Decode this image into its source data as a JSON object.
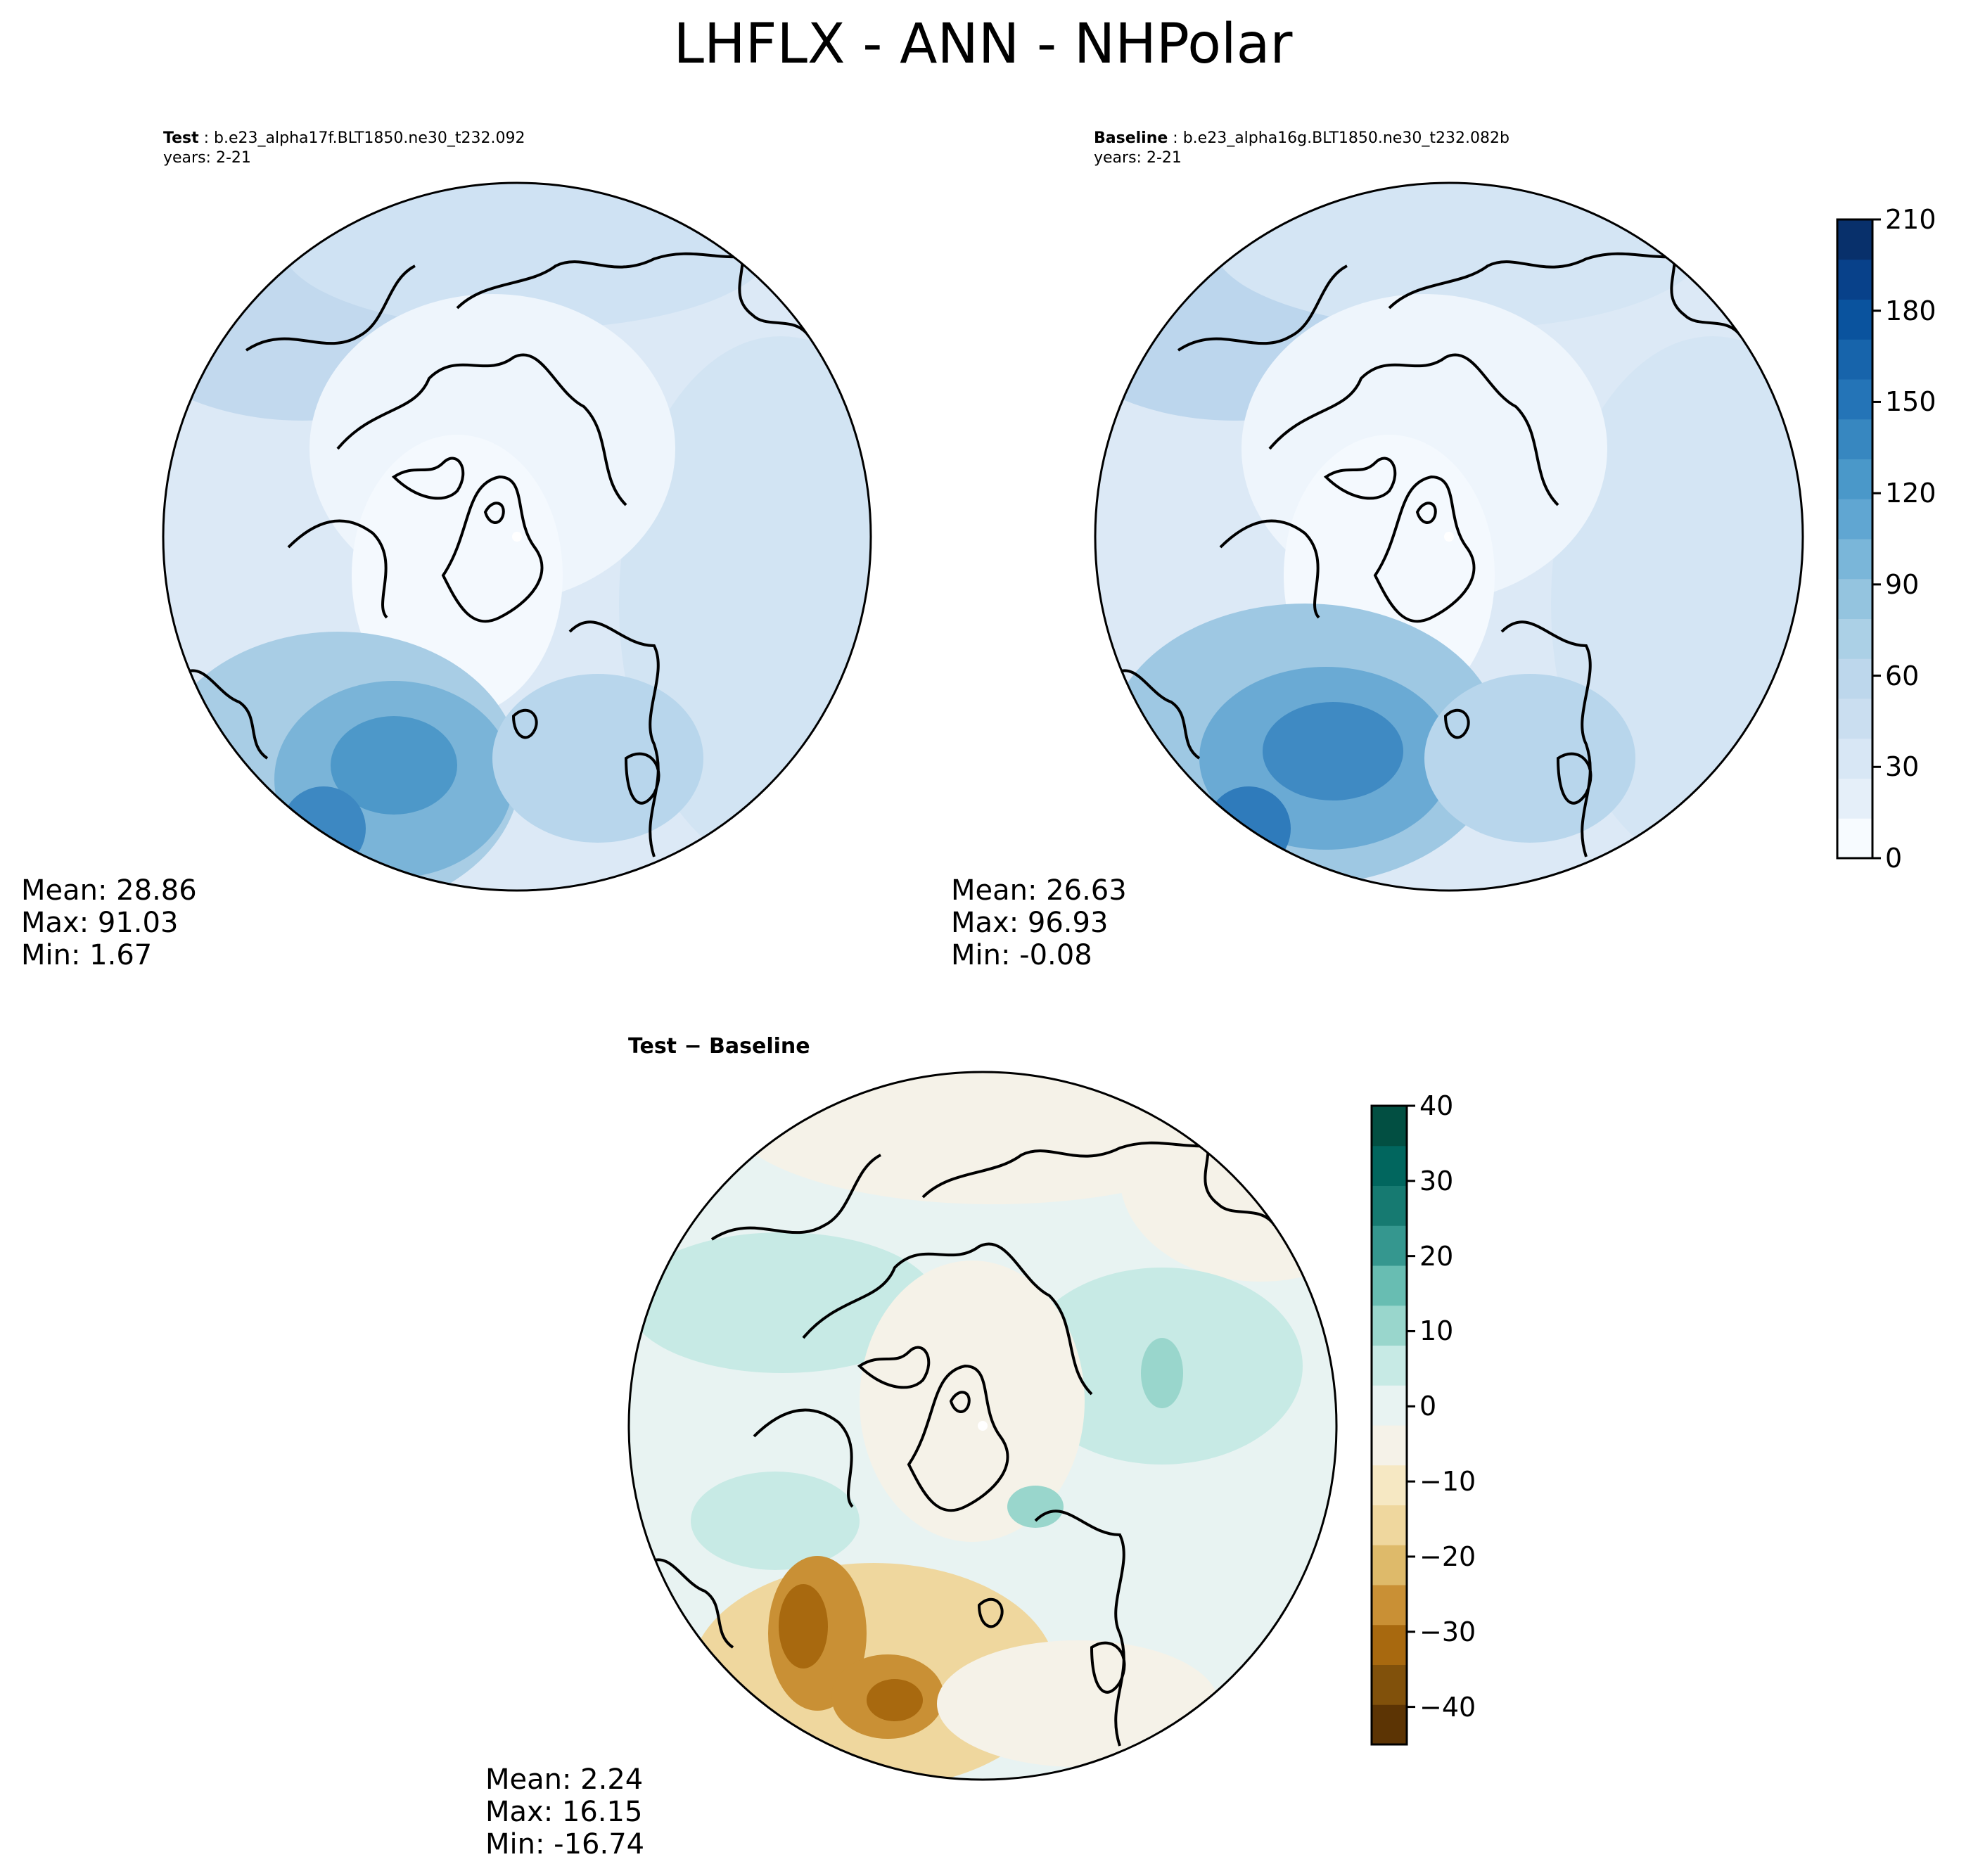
{
  "title": "LHFLX - ANN - NHPolar",
  "colors": {
    "blues": [
      "#f7fbff",
      "#e5eff9",
      "#d8e7f5",
      "#cadef0",
      "#bdd7ec",
      "#abd0e6",
      "#94c4df",
      "#7ab6d9",
      "#60a6d2",
      "#4a98c9",
      "#3787c0",
      "#2474b7",
      "#1764ab",
      "#0a539e",
      "#08418a",
      "#08306b"
    ],
    "diff": [
      "#5c3404",
      "#81510b",
      "#a8690f",
      "#c99035",
      "#deba6a",
      "#efd79e",
      "#f6e8c3",
      "#f5f2e8",
      "#e8f3f2",
      "#c7eae5",
      "#99d6cc",
      "#68bdb2",
      "#35978f",
      "#167a71",
      "#01665e",
      "#024f42"
    ]
  },
  "panels": {
    "test": {
      "label": "Test",
      "case": "b.e23_alpha17f.BLT1850.ne30_t232.092",
      "years": "years: 2-21",
      "stats": {
        "mean": "Mean: 28.86",
        "max": "Max: 91.03",
        "min": "Min:  1.67"
      }
    },
    "baseline": {
      "label": "Baseline",
      "case": "b.e23_alpha16g.BLT1850.ne30_t232.082b",
      "years": "years: 2-21",
      "stats": {
        "mean": "Mean: 26.63",
        "max": "Max: 96.93",
        "min": "Min: -0.08"
      }
    },
    "diff": {
      "title": "Test − Baseline",
      "stats": {
        "mean": "Mean:  2.24",
        "max": "Max: 16.15",
        "min": "Min: -16.74"
      }
    }
  },
  "chart_data": [
    {
      "type": "heatmap",
      "name": "Test",
      "projection": "north polar stereographic",
      "mean": 28.86,
      "max": 91.03,
      "min": 1.67,
      "colorbar": {
        "min": 0,
        "max": 210,
        "ticks": [
          "0",
          "30",
          "60",
          "90",
          "120",
          "150",
          "180",
          "210"
        ]
      }
    },
    {
      "type": "heatmap",
      "name": "Baseline",
      "projection": "north polar stereographic",
      "mean": 26.63,
      "max": 96.93,
      "min": -0.08,
      "colorbar": {
        "min": 0,
        "max": 210,
        "ticks": [
          "0",
          "30",
          "60",
          "90",
          "120",
          "150",
          "180",
          "210"
        ]
      }
    },
    {
      "type": "heatmap",
      "name": "Test − Baseline",
      "projection": "north polar stereographic",
      "mean": 2.24,
      "max": 16.15,
      "min": -16.74,
      "colorbar": {
        "min": -45,
        "max": 40,
        "ticks": [
          "40",
          "30",
          "20",
          "10",
          "0",
          "−10",
          "−20",
          "−30",
          "−40"
        ]
      }
    }
  ]
}
